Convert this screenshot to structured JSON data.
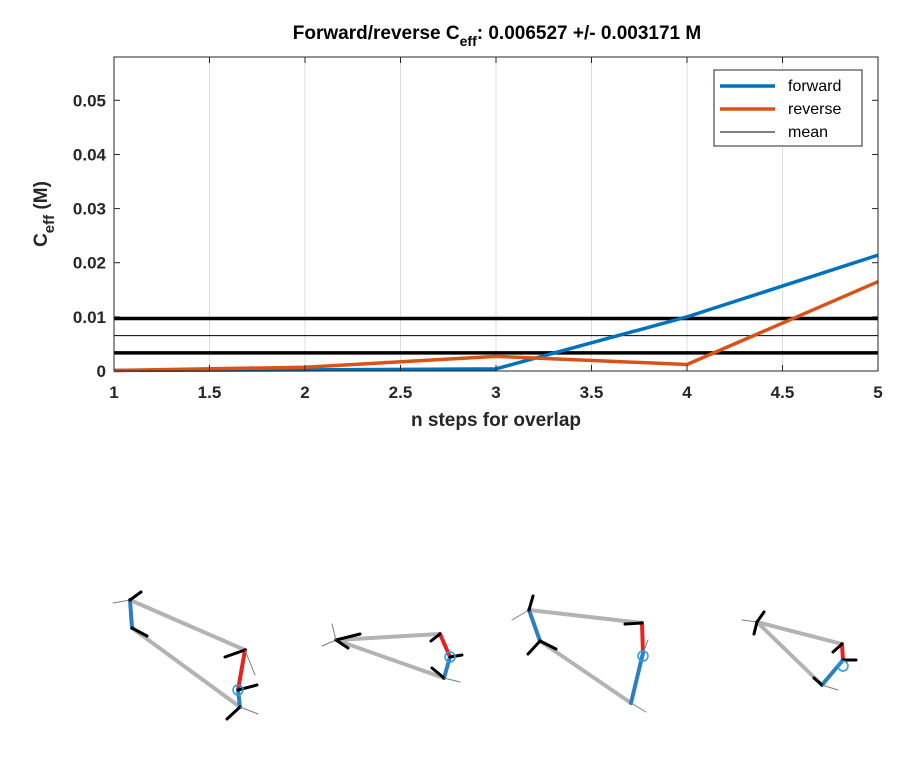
{
  "chart_data": {
    "type": "line",
    "title": {
      "prefix": "Forward/reverse C",
      "subscript": "eff",
      "suffix": ": 0.006527 +/- 0.003171 M"
    },
    "xlabel": "n steps for overlap",
    "ylabel": {
      "main": "C",
      "subscript": "eff",
      "suffix": " (M)"
    },
    "xlim": [
      1,
      5
    ],
    "ylim": [
      0,
      0.058
    ],
    "xticks": [
      1,
      1.5,
      2,
      2.5,
      3,
      3.5,
      4,
      4.5,
      5
    ],
    "xtick_labels": [
      "1",
      "1.5",
      "2",
      "2.5",
      "3",
      "3.5",
      "4",
      "4.5",
      "5"
    ],
    "yticks": [
      0,
      0.01,
      0.02,
      0.03,
      0.04,
      0.05
    ],
    "ytick_labels": [
      "0",
      "0.01",
      "0.02",
      "0.03",
      "0.04",
      "0.05"
    ],
    "grid": "x-only",
    "legend_position": "top-right",
    "series": [
      {
        "name": "forward",
        "color": "#0072BD",
        "x": [
          1,
          2,
          3,
          4,
          5
        ],
        "y": [
          0.0001,
          0.0002,
          0.0004,
          0.01,
          0.0214
        ]
      },
      {
        "name": "reverse",
        "color": "#D95319",
        "x": [
          1,
          2,
          3,
          4,
          5
        ],
        "y": [
          0.0001,
          0.0007,
          0.0027,
          0.0012,
          0.0165
        ]
      }
    ],
    "hlines": [
      {
        "name": "mean",
        "y": 0.006527,
        "color": "#000000",
        "weight": "thin",
        "in_legend": true
      },
      {
        "name": "",
        "y": 0.009698,
        "color": "#000000",
        "weight": "thick",
        "in_legend": false
      },
      {
        "name": "",
        "y": 0.003356,
        "color": "#000000",
        "weight": "thick",
        "in_legend": false
      }
    ]
  },
  "structures": [
    {
      "label": ""
    },
    {
      "label": ""
    },
    {
      "label": ""
    },
    {
      "label": ""
    }
  ]
}
